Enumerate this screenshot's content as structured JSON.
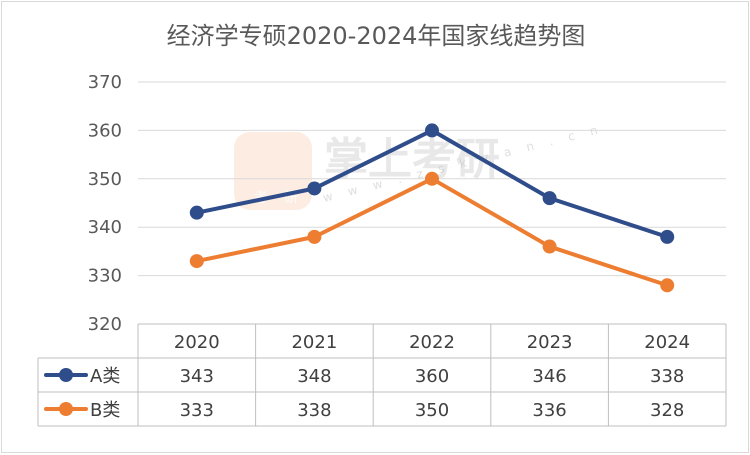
{
  "chart_data": {
    "type": "line",
    "title": "经济学专硕2020-2024年国家线趋势图",
    "categories": [
      "2020",
      "2021",
      "2022",
      "2023",
      "2024"
    ],
    "series": [
      {
        "name": "A类",
        "values": [
          343,
          348,
          360,
          346,
          338
        ],
        "color": "#2f4d8a"
      },
      {
        "name": "B类",
        "values": [
          333,
          338,
          350,
          336,
          328
        ],
        "color": "#ed7d31"
      }
    ],
    "ylim": [
      320,
      370
    ],
    "yticks": [
      320,
      330,
      340,
      350,
      360,
      370
    ],
    "grid": true,
    "legend": "data-table"
  },
  "watermark": {
    "brand": "掌上考研",
    "url": "w w w . z s k y a n . c n",
    "badge_chars": [
      "考",
      "研"
    ]
  }
}
